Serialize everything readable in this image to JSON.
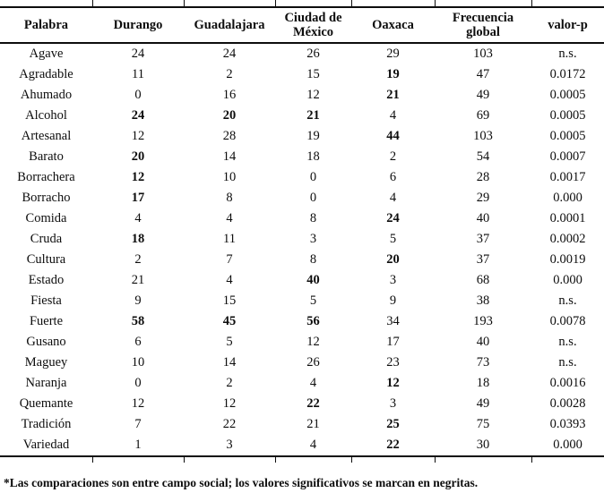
{
  "table": {
    "columns": [
      {
        "key": "palabra",
        "label": "Palabra"
      },
      {
        "key": "durango",
        "label": "Durango"
      },
      {
        "key": "guadalajara",
        "label": "Guadalajara"
      },
      {
        "key": "ciudad-de-mexico",
        "label": "Ciudad de\nMéxico"
      },
      {
        "key": "oaxaca",
        "label": "Oaxaca"
      },
      {
        "key": "frecuencia-global",
        "label": "Frecuencia\nglobal"
      },
      {
        "key": "valor-p",
        "label": "valor-p"
      }
    ],
    "rows": [
      {
        "cells": [
          "Agave",
          "24",
          "24",
          "26",
          "29",
          "103",
          "n.s."
        ],
        "bold_cols": []
      },
      {
        "cells": [
          "Agradable",
          "11",
          "2",
          "15",
          "19",
          "47",
          "0.0172"
        ],
        "bold_cols": [
          4
        ]
      },
      {
        "cells": [
          "Ahumado",
          "0",
          "16",
          "12",
          "21",
          "49",
          "0.0005"
        ],
        "bold_cols": [
          4
        ]
      },
      {
        "cells": [
          "Alcohol",
          "24",
          "20",
          "21",
          "4",
          "69",
          "0.0005"
        ],
        "bold_cols": [
          1,
          2,
          3
        ]
      },
      {
        "cells": [
          "Artesanal",
          "12",
          "28",
          "19",
          "44",
          "103",
          "0.0005"
        ],
        "bold_cols": [
          4
        ]
      },
      {
        "cells": [
          "Barato",
          "20",
          "14",
          "18",
          "2",
          "54",
          "0.0007"
        ],
        "bold_cols": [
          1
        ]
      },
      {
        "cells": [
          "Borrachera",
          "12",
          "10",
          "0",
          "6",
          "28",
          "0.0017"
        ],
        "bold_cols": [
          1
        ]
      },
      {
        "cells": [
          "Borracho",
          "17",
          "8",
          "0",
          "4",
          "29",
          "0.000"
        ],
        "bold_cols": [
          1
        ]
      },
      {
        "cells": [
          "Comida",
          "4",
          "4",
          "8",
          "24",
          "40",
          "0.0001"
        ],
        "bold_cols": [
          4
        ]
      },
      {
        "cells": [
          "Cruda",
          "18",
          "11",
          "3",
          "5",
          "37",
          "0.0002"
        ],
        "bold_cols": [
          1
        ]
      },
      {
        "cells": [
          "Cultura",
          "2",
          "7",
          "8",
          "20",
          "37",
          "0.0019"
        ],
        "bold_cols": [
          4
        ]
      },
      {
        "cells": [
          "Estado",
          "21",
          "4",
          "40",
          "3",
          "68",
          "0.000"
        ],
        "bold_cols": [
          3
        ]
      },
      {
        "cells": [
          "Fiesta",
          "9",
          "15",
          "5",
          "9",
          "38",
          "n.s."
        ],
        "bold_cols": []
      },
      {
        "cells": [
          "Fuerte",
          "58",
          "45",
          "56",
          "34",
          "193",
          "0.0078"
        ],
        "bold_cols": [
          1,
          2,
          3
        ]
      },
      {
        "cells": [
          "Gusano",
          "6",
          "5",
          "12",
          "17",
          "40",
          "n.s."
        ],
        "bold_cols": []
      },
      {
        "cells": [
          "Maguey",
          "10",
          "14",
          "26",
          "23",
          "73",
          "n.s."
        ],
        "bold_cols": []
      },
      {
        "cells": [
          "Naranja",
          "0",
          "2",
          "4",
          "12",
          "18",
          "0.0016"
        ],
        "bold_cols": [
          4
        ]
      },
      {
        "cells": [
          "Quemante",
          "12",
          "12",
          "22",
          "3",
          "49",
          "0.0028"
        ],
        "bold_cols": [
          3
        ]
      },
      {
        "cells": [
          "Tradición",
          "7",
          "22",
          "21",
          "25",
          "75",
          "0.0393"
        ],
        "bold_cols": [
          4
        ]
      },
      {
        "cells": [
          "Variedad",
          "1",
          "3",
          "4",
          "22",
          "30",
          "0.000"
        ],
        "bold_cols": [
          4
        ]
      }
    ]
  },
  "footnote": "*Las comparaciones son entre campo social; los valores significativos se marcan en negritas.",
  "colors": {
    "text": "#0d0d0d",
    "background": "#ffffff"
  }
}
